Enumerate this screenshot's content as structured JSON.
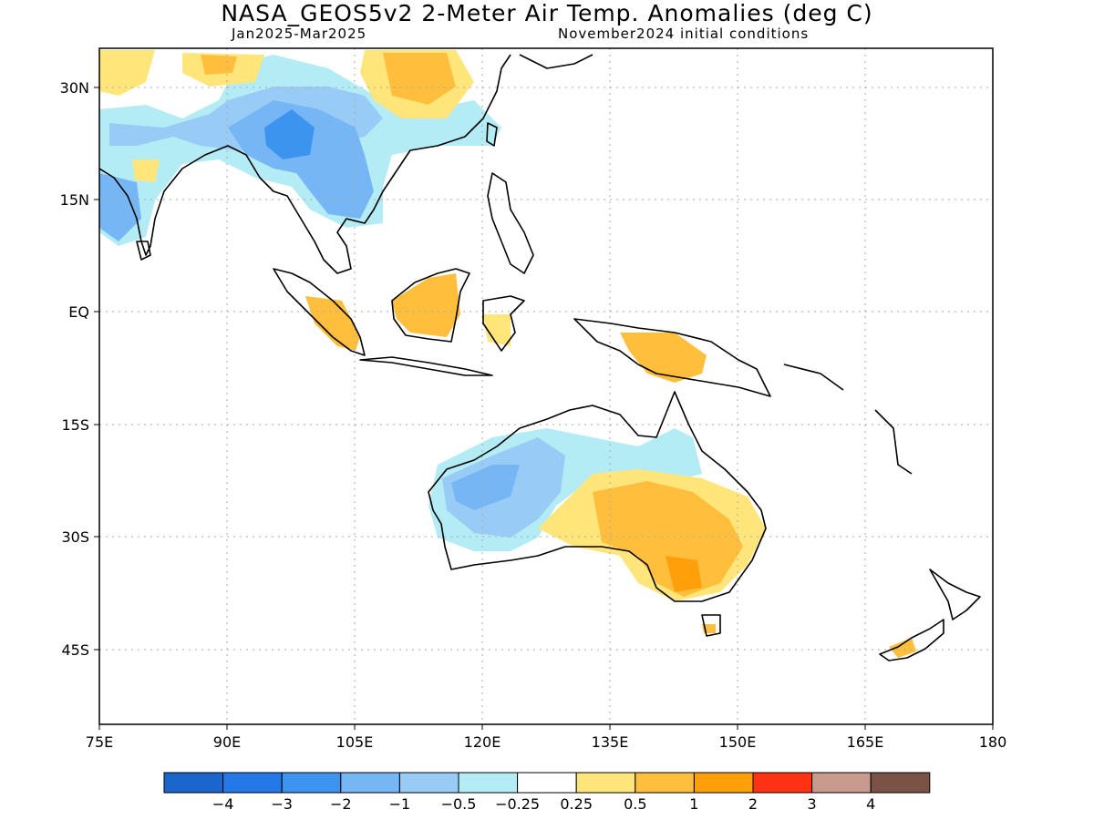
{
  "title": "NASA_GEOS5v2 2-Meter Air Temp. Anomalies (deg C)",
  "period": "Jan2025-Mar2025",
  "init": "November2024 initial conditions",
  "lat_labels": [
    "30N",
    "15N",
    "EQ",
    "15S",
    "30S",
    "45S"
  ],
  "lon_labels": [
    "75E",
    "90E",
    "105E",
    "120E",
    "135E",
    "150E",
    "165E",
    "180"
  ],
  "legend": {
    "bins": [
      {
        "color": "#1a66cc"
      },
      {
        "color": "#2478e8"
      },
      {
        "color": "#3d94ef"
      },
      {
        "color": "#76b6f4"
      },
      {
        "color": "#98ccf6"
      },
      {
        "color": "#b4ecf6"
      },
      {
        "color": "#ffffff"
      },
      {
        "color": "#ffe57a"
      },
      {
        "color": "#ffbe3c"
      },
      {
        "color": "#ffa00a"
      },
      {
        "color": "#ff3214"
      },
      {
        "color": "#c89a8e"
      },
      {
        "color": "#7a5246"
      }
    ],
    "labels": [
      "-4",
      "-3",
      "-2",
      "-1",
      "-0.5",
      "-0.25",
      "0.25",
      "0.5",
      "1",
      "2",
      "3",
      "4"
    ]
  }
}
